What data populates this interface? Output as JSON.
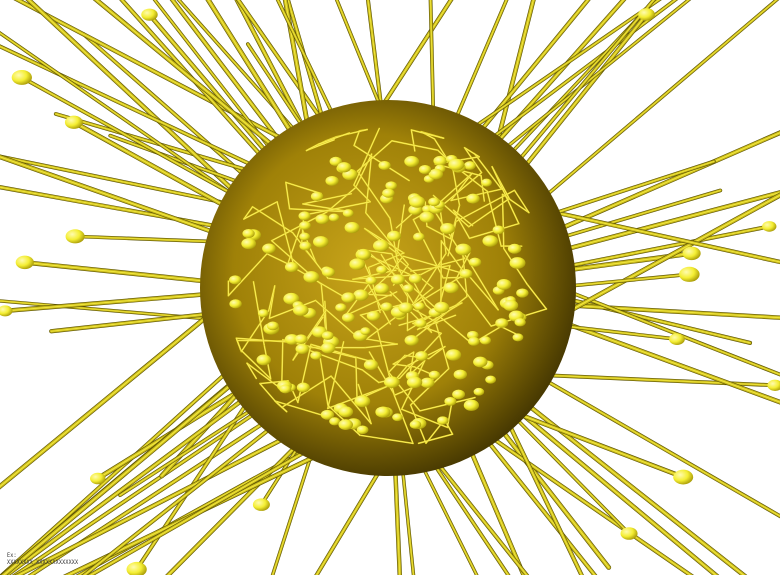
{
  "scene": {
    "subject": "sphere-with-molecular-strands",
    "colors": {
      "background": "#ffffff",
      "sphere_center": "#c9a51a",
      "sphere_mid": "#9f8108",
      "sphere_edge": "#3a2e00",
      "strand_outer": "#5a5200",
      "strand_inner": "#f0e63a",
      "bead": "#f4ee33",
      "bead_highlight": "#fffbb0"
    },
    "sphere": {
      "name": "golden-sphere"
    }
  },
  "caption": {
    "line1": "Ex:",
    "line2": "XXXXXXXX XXXXXXXXXXXXX"
  }
}
